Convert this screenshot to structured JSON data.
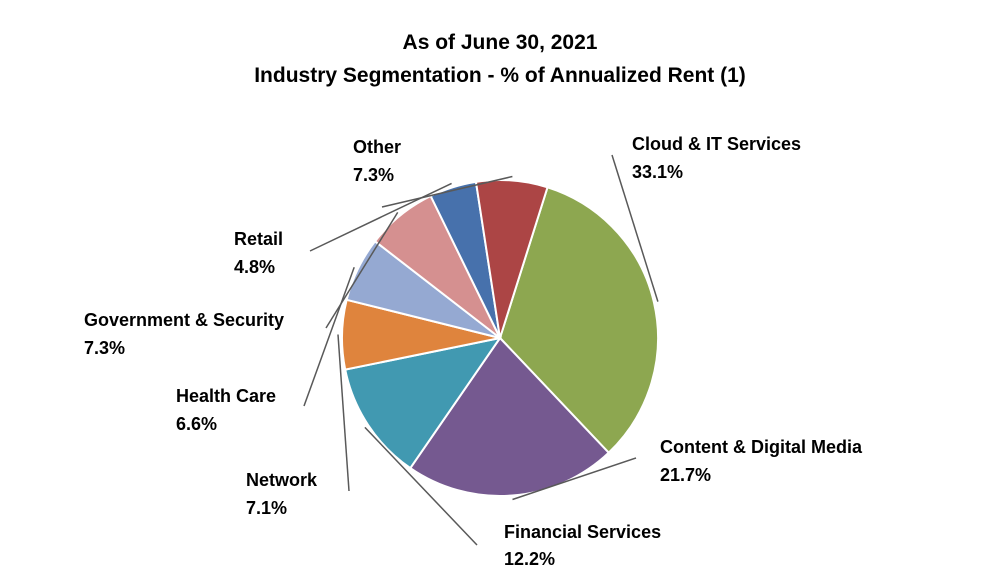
{
  "chart_data": {
    "type": "pie",
    "title": "As of June 30, 2021",
    "subtitle": "Industry Segmentation - % of Annualized Rent (1)",
    "start_angle_deg": -72.5,
    "direction": "clockwise",
    "slices": [
      {
        "key": "cloud",
        "label": "Cloud & IT Services",
        "value": 33.1,
        "value_label": "33.1%",
        "color": "#8DA750"
      },
      {
        "key": "content",
        "label": "Content & Digital Media",
        "value": 21.7,
        "value_label": "21.7%",
        "color": "#755990"
      },
      {
        "key": "financial",
        "label": "Financial Services",
        "value": 12.2,
        "value_label": "12.2%",
        "color": "#4199B1"
      },
      {
        "key": "network",
        "label": "Network",
        "value": 7.1,
        "value_label": "7.1%",
        "color": "#DF843D"
      },
      {
        "key": "health",
        "label": "Health Care",
        "value": 6.6,
        "value_label": "6.6%",
        "color": "#95A9D2"
      },
      {
        "key": "gov",
        "label": "Government & Security",
        "value": 7.3,
        "value_label": "7.3%",
        "color": "#D59090"
      },
      {
        "key": "retail",
        "label": "Retail",
        "value": 4.8,
        "value_label": "4.8%",
        "color": "#4771AC"
      },
      {
        "key": "other",
        "label": "Other",
        "value": 7.3,
        "value_label": "7.3%",
        "color": "#AC4545"
      }
    ]
  }
}
